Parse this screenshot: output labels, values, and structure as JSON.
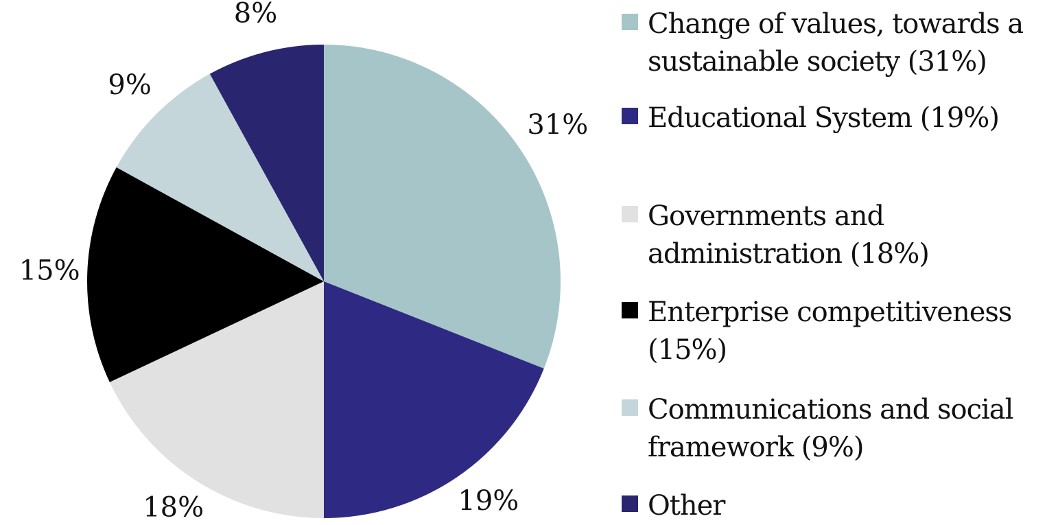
{
  "chart_data": {
    "type": "pie",
    "title": "",
    "slices": [
      {
        "label": "Change of values, towards a sustainable society (31%)",
        "value": 31,
        "data_label": "31%",
        "color": "#a6c5c8"
      },
      {
        "label": "Educational System (19%)",
        "value": 19,
        "data_label": "19%",
        "color": "#2e2a83"
      },
      {
        "label": "Governments and administration (18%)",
        "value": 18,
        "data_label": "18%",
        "color": "#e1e1e1"
      },
      {
        "label": "Enterprise competitiveness (15%)",
        "value": 15,
        "data_label": "15%",
        "color": "#000000"
      },
      {
        "label": "Communications and social framework (9%)",
        "value": 9,
        "data_label": "9%",
        "color": "#c4d6d9"
      },
      {
        "label": "Other",
        "value": 8,
        "data_label": "8%",
        "color": "#29256f"
      }
    ],
    "legend_position": "right"
  }
}
